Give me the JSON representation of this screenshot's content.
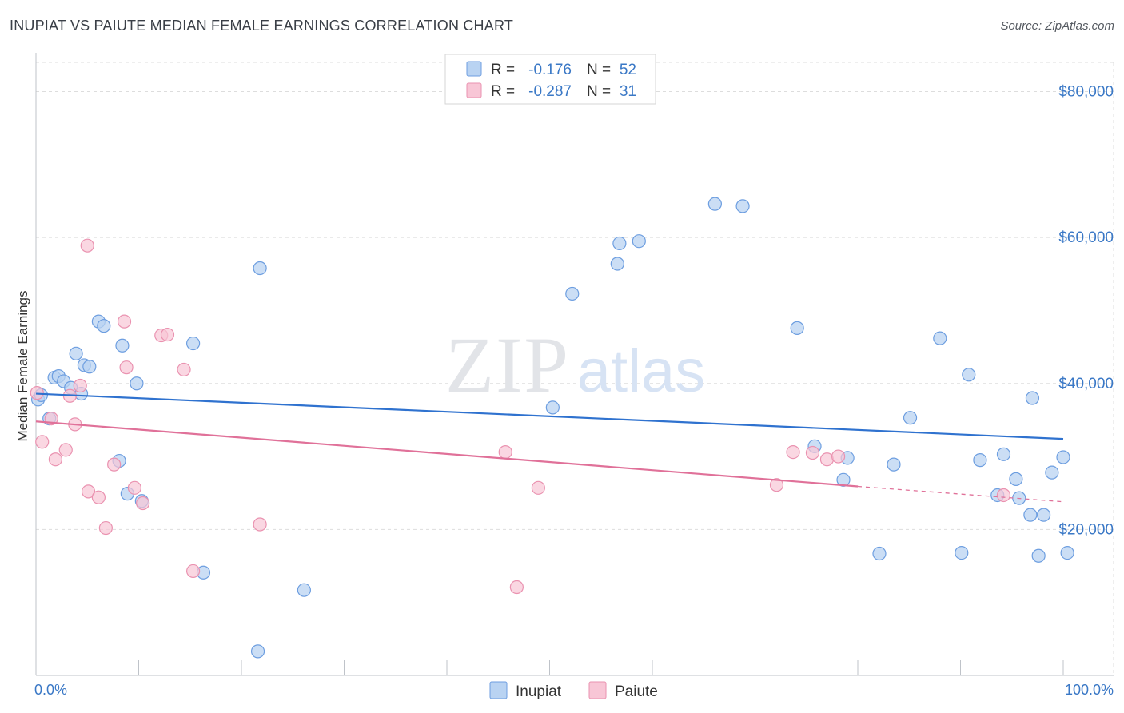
{
  "title": "INUPIAT VS PAIUTE MEDIAN FEMALE EARNINGS CORRELATION CHART",
  "source": "Source: ZipAtlas.com",
  "watermark": {
    "zip": "ZIP",
    "atlas": "atlas"
  },
  "colors": {
    "inupiat_fill": "#b9d3f2",
    "inupiat_stroke": "#6d9ee0",
    "inupiat_line": "#2f72cf",
    "paiute_fill": "#f8c6d6",
    "paiute_stroke": "#ea92b0",
    "paiute_line": "#e07199",
    "tick_text": "#3a78c6",
    "grid": "#dddddd"
  },
  "legend": {
    "rows": [
      {
        "r_label": "R =",
        "r_value": "-0.176",
        "n_label": "N =",
        "n_value": "52"
      },
      {
        "r_label": "R =",
        "r_value": "-0.287",
        "n_label": "N =",
        "n_value": "31"
      }
    ]
  },
  "chart_data": {
    "type": "scatter",
    "title": "INUPIAT VS PAIUTE MEDIAN FEMALE EARNINGS CORRELATION CHART",
    "xlabel": "",
    "ylabel": "Median Female Earnings",
    "xlim": [
      0,
      100
    ],
    "ylim": [
      0,
      84000
    ],
    "x_tick_labels": [
      "0.0%",
      "100.0%"
    ],
    "y_ticks": [
      20000,
      40000,
      60000,
      80000
    ],
    "y_tick_labels": [
      "$20,000",
      "$40,000",
      "$60,000",
      "$80,000"
    ],
    "grid": true,
    "series": [
      {
        "name": "Inupiat",
        "r": -0.176,
        "n": 52,
        "trend": {
          "x0": 0,
          "y0": 38600,
          "x1": 100,
          "y1": 32400
        },
        "points": [
          [
            0.2,
            37800
          ],
          [
            0.5,
            38400
          ],
          [
            1.3,
            35200
          ],
          [
            1.8,
            40800
          ],
          [
            2.2,
            41000
          ],
          [
            2.7,
            40300
          ],
          [
            3.4,
            39400
          ],
          [
            3.9,
            44100
          ],
          [
            4.4,
            38600
          ],
          [
            4.7,
            42500
          ],
          [
            5.2,
            42300
          ],
          [
            6.1,
            48500
          ],
          [
            6.6,
            47900
          ],
          [
            8.1,
            29400
          ],
          [
            8.4,
            45200
          ],
          [
            8.9,
            24900
          ],
          [
            9.8,
            40000
          ],
          [
            10.3,
            23900
          ],
          [
            15.3,
            45500
          ],
          [
            16.3,
            14100
          ],
          [
            21.8,
            55800
          ],
          [
            21.6,
            3300
          ],
          [
            26.1,
            11700
          ],
          [
            50.3,
            36700
          ],
          [
            52.2,
            52300
          ],
          [
            56.6,
            56400
          ],
          [
            56.8,
            59200
          ],
          [
            58.7,
            59500
          ],
          [
            66.1,
            64600
          ],
          [
            68.8,
            64300
          ],
          [
            74.1,
            47600
          ],
          [
            75.8,
            31400
          ],
          [
            79.0,
            29800
          ],
          [
            78.6,
            26800
          ],
          [
            82.1,
            16700
          ],
          [
            83.5,
            28900
          ],
          [
            85.1,
            35300
          ],
          [
            88.0,
            46200
          ],
          [
            90.1,
            16800
          ],
          [
            90.8,
            41200
          ],
          [
            91.9,
            29500
          ],
          [
            93.6,
            24700
          ],
          [
            94.2,
            30300
          ],
          [
            95.4,
            26900
          ],
          [
            95.7,
            24300
          ],
          [
            96.8,
            22000
          ],
          [
            97.0,
            38000
          ],
          [
            97.6,
            16400
          ],
          [
            98.1,
            22000
          ],
          [
            98.9,
            27800
          ],
          [
            100.0,
            29900
          ],
          [
            100.4,
            16800
          ]
        ]
      },
      {
        "name": "Paiute",
        "r": -0.287,
        "n": 31,
        "trend": {
          "x0": 0,
          "y0": 34800,
          "x1": 80,
          "y1": 25900
        },
        "trend_extension": {
          "x0": 80,
          "y0": 25900,
          "x1": 100,
          "y1": 23800
        },
        "points": [
          [
            0.1,
            38700
          ],
          [
            0.6,
            32000
          ],
          [
            1.5,
            35200
          ],
          [
            1.9,
            29600
          ],
          [
            2.9,
            30900
          ],
          [
            3.3,
            38300
          ],
          [
            3.8,
            34400
          ],
          [
            4.3,
            39700
          ],
          [
            5.0,
            58900
          ],
          [
            5.1,
            25200
          ],
          [
            6.1,
            24400
          ],
          [
            6.8,
            20200
          ],
          [
            7.6,
            28900
          ],
          [
            8.6,
            48500
          ],
          [
            8.8,
            42200
          ],
          [
            9.6,
            25700
          ],
          [
            10.4,
            23600
          ],
          [
            12.2,
            46600
          ],
          [
            12.8,
            46700
          ],
          [
            14.4,
            41900
          ],
          [
            15.3,
            14300
          ],
          [
            21.8,
            20700
          ],
          [
            45.7,
            30600
          ],
          [
            48.9,
            25700
          ],
          [
            46.8,
            12100
          ],
          [
            72.1,
            26100
          ],
          [
            73.7,
            30600
          ],
          [
            75.6,
            30500
          ],
          [
            77.0,
            29600
          ],
          [
            78.1,
            30000
          ],
          [
            94.2,
            24700
          ]
        ]
      }
    ]
  }
}
